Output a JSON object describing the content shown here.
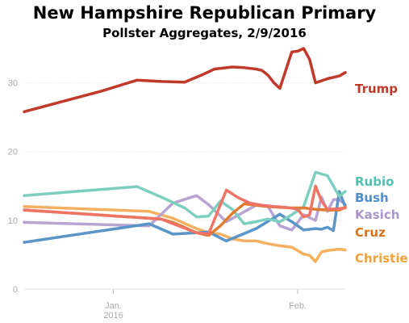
{
  "chart_data": {
    "type": "line",
    "title": "New Hampshire Republican Primary",
    "subtitle": "Pollster Aggregates, 2/9/2016",
    "xlabel": "",
    "ylabel": "",
    "xlim": [
      "2015-12-17",
      "2016-02-09"
    ],
    "ylim": [
      0,
      35
    ],
    "yticks": [
      0,
      10,
      20,
      30
    ],
    "xticks": [
      {
        "date": "2016-01-01",
        "label": "Jan.",
        "sublabel": "2016"
      },
      {
        "date": "2016-02-01",
        "label": "Feb.",
        "sublabel": ""
      }
    ],
    "grid": true,
    "legend": "inline-right",
    "series": [
      {
        "name": "Trump",
        "color": "#c0392b",
        "x": [
          "2015-12-17",
          "2015-12-30",
          "2016-01-05",
          "2016-01-09",
          "2016-01-13",
          "2016-01-16",
          "2016-01-18",
          "2016-01-21",
          "2016-01-23",
          "2016-01-24",
          "2016-01-25",
          "2016-01-26",
          "2016-01-27",
          "2016-01-28",
          "2016-01-29",
          "2016-01-31",
          "2016-02-01",
          "2016-02-02",
          "2016-02-03",
          "2016-02-04",
          "2016-02-06",
          "2016-02-08",
          "2016-02-09"
        ],
        "y": [
          25.8,
          28.8,
          30.4,
          30.2,
          30.1,
          31.2,
          32.0,
          32.3,
          32.2,
          32.1,
          32.0,
          31.8,
          31.1,
          30.0,
          29.2,
          34.5,
          34.6,
          35.0,
          33.4,
          30.0,
          30.6,
          31.0,
          31.5
        ]
      },
      {
        "name": "Rubio",
        "color": "#7fcfc0",
        "x": [
          "2015-12-17",
          "2016-01-05",
          "2016-01-09",
          "2016-01-13",
          "2016-01-15",
          "2016-01-17",
          "2016-01-19",
          "2016-01-21",
          "2016-01-23",
          "2016-01-25",
          "2016-01-27",
          "2016-01-29",
          "2016-01-31",
          "2016-02-02",
          "2016-02-04",
          "2016-02-06",
          "2016-02-08",
          "2016-02-09"
        ],
        "y": [
          13.6,
          14.9,
          13.4,
          11.8,
          10.5,
          10.6,
          12.8,
          11.6,
          9.5,
          9.8,
          10.2,
          9.8,
          10.8,
          12.0,
          17.0,
          16.5,
          13.5,
          14.2
        ]
      },
      {
        "name": "Bush",
        "color": "#5b95c8",
        "x": [
          "2015-12-17",
          "2016-01-07",
          "2016-01-11",
          "2016-01-15",
          "2016-01-17",
          "2016-01-20",
          "2016-01-25",
          "2016-01-29",
          "2016-01-31",
          "2016-02-02",
          "2016-02-04",
          "2016-02-05",
          "2016-02-06",
          "2016-02-07",
          "2016-02-08",
          "2016-02-09"
        ],
        "y": [
          6.8,
          9.5,
          8.0,
          8.2,
          8.3,
          7.0,
          8.8,
          10.9,
          9.8,
          8.6,
          8.8,
          8.7,
          9.0,
          8.5,
          14.2,
          12.0
        ]
      },
      {
        "name": "Kasich",
        "color": "#b7a4d2",
        "x": [
          "2015-12-17",
          "2016-01-07",
          "2016-01-11",
          "2016-01-15",
          "2016-01-17",
          "2016-01-20",
          "2016-01-25",
          "2016-01-27",
          "2016-01-29",
          "2016-01-31",
          "2016-02-02",
          "2016-02-04",
          "2016-02-05",
          "2016-02-06",
          "2016-02-07",
          "2016-02-08",
          "2016-02-09"
        ],
        "y": [
          9.7,
          9.2,
          12.5,
          13.6,
          12.3,
          9.8,
          12.2,
          12.0,
          9.2,
          8.6,
          10.8,
          10.0,
          13.4,
          11.3,
          13.0,
          13.0,
          12.3
        ]
      },
      {
        "name": "Cruz",
        "color": "#e07b2f",
        "x": [
          "2015-12-17",
          "2016-01-09",
          "2016-01-11",
          "2016-01-15",
          "2016-01-17",
          "2016-01-19",
          "2016-01-21",
          "2016-01-23",
          "2016-01-25",
          "2016-01-27",
          "2016-01-29",
          "2016-01-31",
          "2016-02-02",
          "2016-02-04",
          "2016-02-06",
          "2016-02-08",
          "2016-02-09"
        ],
        "y": [
          11.5,
          10.2,
          9.7,
          8.2,
          7.8,
          9.2,
          11.0,
          12.4,
          12.2,
          12.0,
          11.9,
          11.8,
          11.8,
          11.6,
          11.5,
          11.5,
          11.9
        ]
      },
      {
        "name": "",
        "color": "#f07466",
        "x": [
          "2015-12-17",
          "2016-01-09",
          "2016-01-15",
          "2016-01-17",
          "2016-01-20",
          "2016-01-22",
          "2016-01-24",
          "2016-01-26",
          "2016-01-28",
          "2016-01-30",
          "2016-02-01",
          "2016-02-02",
          "2016-02-03",
          "2016-02-04",
          "2016-02-05",
          "2016-02-06",
          "2016-02-08",
          "2016-02-09"
        ],
        "y": [
          11.5,
          10.2,
          8.2,
          8.0,
          14.4,
          13.3,
          12.5,
          12.2,
          12.0,
          11.9,
          11.6,
          10.5,
          10.8,
          15.0,
          12.8,
          11.6,
          11.7,
          11.8
        ]
      },
      {
        "name": "Christie",
        "color": "#f5b060",
        "x": [
          "2015-12-17",
          "2016-01-07",
          "2016-01-11",
          "2016-01-15",
          "2016-01-17",
          "2016-01-19",
          "2016-01-21",
          "2016-01-23",
          "2016-01-25",
          "2016-01-27",
          "2016-01-29",
          "2016-01-31",
          "2016-02-02",
          "2016-02-03",
          "2016-02-04",
          "2016-02-05",
          "2016-02-06",
          "2016-02-08",
          "2016-02-09"
        ],
        "y": [
          12.0,
          11.3,
          10.3,
          8.8,
          8.2,
          8.0,
          7.3,
          7.0,
          7.0,
          6.6,
          6.3,
          6.1,
          5.1,
          4.9,
          4.0,
          5.4,
          5.6,
          5.8,
          5.7
        ]
      }
    ],
    "legend_labels": [
      {
        "text": "Trump",
        "color": "#c0392b"
      },
      {
        "text": "Rubio",
        "color": "#4fc0ae"
      },
      {
        "text": "Bush",
        "color": "#4f8ccb"
      },
      {
        "text": "Kasich",
        "color": "#a994cc"
      },
      {
        "text": "Cruz",
        "color": "#d9741f"
      },
      {
        "text": "Christie",
        "color": "#f2a23a"
      }
    ]
  }
}
